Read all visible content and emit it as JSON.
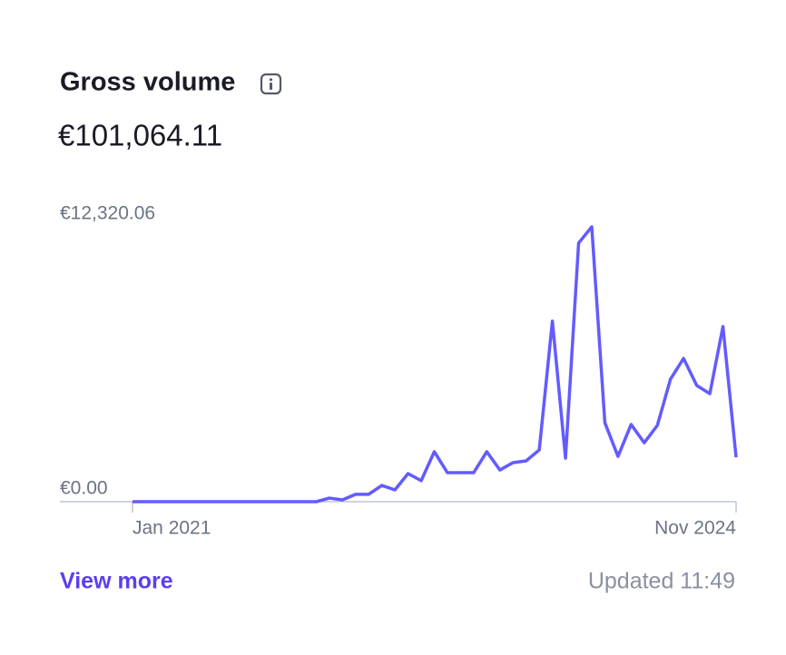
{
  "header": {
    "title": "Gross volume",
    "total": "€101,064.11"
  },
  "chart_data": {
    "type": "line",
    "categories": [
      "Jan 2021",
      null,
      null,
      null,
      null,
      null,
      null,
      null,
      null,
      null,
      null,
      null,
      null,
      null,
      null,
      null,
      null,
      null,
      null,
      null,
      null,
      null,
      null,
      null,
      null,
      null,
      null,
      null,
      null,
      null,
      null,
      null,
      null,
      null,
      null,
      null,
      null,
      null,
      null,
      null,
      null,
      null,
      null,
      null,
      null,
      null,
      "Nov 2024"
    ],
    "series": [
      {
        "name": "Gross volume",
        "color": "#635bff",
        "values": [
          0,
          0,
          0,
          0,
          0,
          0,
          0,
          0,
          0,
          0,
          0,
          0,
          0,
          0,
          0,
          160,
          80,
          330,
          330,
          730,
          530,
          1260,
          940,
          2240,
          1300,
          1300,
          1300,
          2240,
          1420,
          1750,
          1830,
          2320,
          8090,
          1950,
          11590,
          12320.06,
          3540,
          2030,
          3460,
          2640,
          3420,
          5490,
          6420,
          5210,
          4840,
          7850,
          1990
        ]
      }
    ],
    "ylim": [
      0,
      12320.06
    ],
    "yticks": [
      {
        "value": 0,
        "label": "€0.00"
      },
      {
        "value": 12320.06,
        "label": "€12,320.06"
      }
    ]
  },
  "footer": {
    "link": "View more",
    "updated": "Updated 11:49"
  }
}
